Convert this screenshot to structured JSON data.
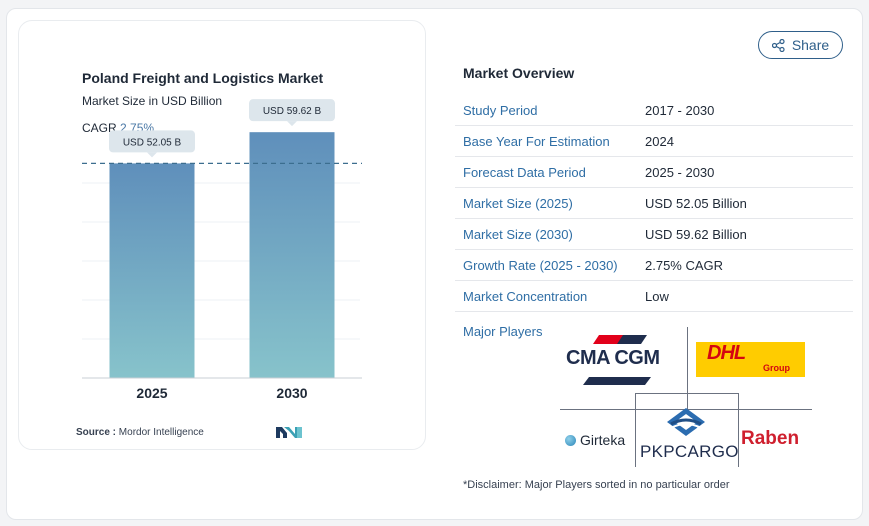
{
  "chart": {
    "title": "Poland Freight and Logistics Market",
    "subtitle": "Market Size in USD Billion",
    "cagr_label": "CAGR",
    "cagr_value": "2.75%",
    "source_label": "Source :",
    "source_value": "Mordor Intelligence"
  },
  "chart_data": {
    "type": "bar",
    "categories": [
      "2025",
      "2030"
    ],
    "values": [
      52.05,
      59.62
    ],
    "value_labels": [
      "USD 52.05 B",
      "USD 59.62 B"
    ],
    "title": "Poland Freight and Logistics Market",
    "subtitle": "Market Size in USD Billion",
    "ylim": [
      0,
      65
    ],
    "grid": false,
    "reference_line": 52.05,
    "bar_color_top": "#5f8fbb",
    "bar_color_bottom": "#87c3cb"
  },
  "share": {
    "label": "Share"
  },
  "overview": {
    "title": "Market Overview",
    "rows": [
      {
        "key": "Study Period",
        "value": "2017 - 2030"
      },
      {
        "key": "Base Year For Estimation",
        "value": "2024"
      },
      {
        "key": "Forecast Data Period",
        "value": "2025 - 2030"
      },
      {
        "key": "Market Size (2025)",
        "value": "USD 52.05 Billion"
      },
      {
        "key": "Market Size (2030)",
        "value": "USD 59.62 Billion"
      },
      {
        "key": "Growth Rate (2025 - 2030)",
        "value": "2.75% CAGR"
      },
      {
        "key": "Market Concentration",
        "value": "Low"
      }
    ],
    "players_label": "Major Players",
    "players": {
      "p1": "CMA CGM",
      "p2": "DHL",
      "p2_sub": "Group",
      "p3": "Girteka",
      "p4": "PKPCARGO",
      "p5": "Raben"
    },
    "disclaimer": "*Disclaimer: Major Players sorted in no particular order"
  },
  "colors": {
    "accent": "#2f6ea5",
    "cma_red": "#e2001a",
    "cma_blue": "#1f2d4d",
    "dhl_yellow": "#ffcc00",
    "dhl_red": "#d40511",
    "raben_red": "#cf1f2e",
    "pkp_blue": "#2b6cb0"
  }
}
